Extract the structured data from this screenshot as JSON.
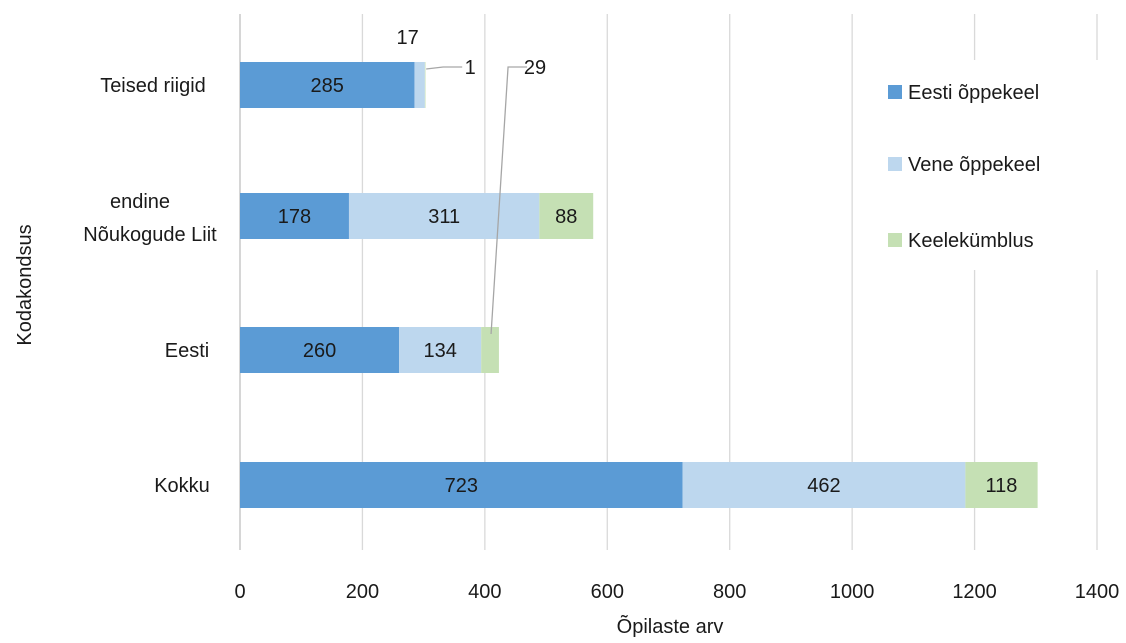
{
  "chart_data": {
    "type": "bar",
    "orientation": "horizontal",
    "stacked": true,
    "categories": [
      "Teised riigid",
      "endine Nõukogude Liit",
      "Eesti",
      "Kokku"
    ],
    "category_label_lines": [
      [
        "Teised riigid"
      ],
      [
        "endine",
        "Nõukogude Liit"
      ],
      [
        "Eesti"
      ],
      [
        "Kokku"
      ]
    ],
    "series": [
      {
        "name": "Eesti õppekeel",
        "values": [
          285,
          178,
          260,
          723
        ],
        "color": "#5b9bd5"
      },
      {
        "name": "Vene õppekeel",
        "values": [
          17,
          311,
          134,
          462
        ],
        "color": "#bdd7ee"
      },
      {
        "name": "Keelekümblus",
        "values": [
          1,
          88,
          29,
          118
        ],
        "color": "#c5e0b4"
      }
    ],
    "xlabel": "Õpilaste arv",
    "ylabel": "Kodakondsus",
    "xlim": [
      0,
      1400
    ],
    "xticks": [
      0,
      200,
      400,
      600,
      800,
      1000,
      1200,
      1400
    ],
    "grid": "vertical",
    "legend_position": "right"
  }
}
